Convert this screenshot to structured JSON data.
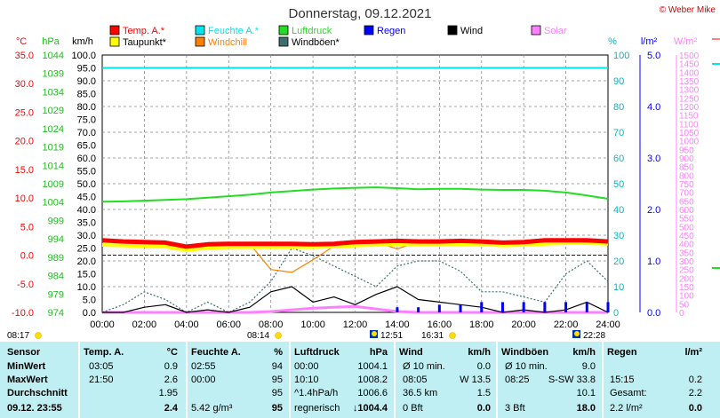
{
  "title": "Donnerstag, 09.12.2021",
  "brand": "© Weber Mike",
  "legend": [
    {
      "label": "Temp. A.*",
      "color": "#ff0000"
    },
    {
      "label": "Feuchte A.*",
      "color": "#00e5ee"
    },
    {
      "label": "Luftdruck",
      "color": "#22dd22"
    },
    {
      "label": "Regen",
      "color": "#0000ff"
    },
    {
      "label": "Wind",
      "color": "#000000"
    },
    {
      "label": "Solar",
      "color": "#ff80ff"
    },
    {
      "label": "Taupunkt*",
      "color": "#ffff00"
    },
    {
      "label": "Windchill",
      "color": "#ff8000"
    },
    {
      "label": "Windböen*",
      "color": "#3e6f6f"
    }
  ],
  "axes": {
    "temp_unit": "°C",
    "press_unit": "hPa",
    "wind_unit": "km/h",
    "hum_unit": "%",
    "rain_unit": "l/m²",
    "solar_unit": "W/m²",
    "temp_ticks": [
      "35.0",
      "30.0",
      "25.0",
      "20.0",
      "15.0",
      "10.0",
      "5.0",
      "0.0",
      "-5.0",
      "-10.0"
    ],
    "press_ticks": [
      "1044",
      "1039",
      "1034",
      "1029",
      "1024",
      "1019",
      "1014",
      "1009",
      "1004",
      "999",
      "994",
      "989",
      "984",
      "979",
      "974"
    ],
    "wind_ticks": [
      "100.0",
      "95.0",
      "90.0",
      "85.0",
      "80.0",
      "75.0",
      "70.0",
      "65.0",
      "60.0",
      "55.0",
      "50.0",
      "45.0",
      "40.0",
      "35.0",
      "30.0",
      "25.0",
      "20.0",
      "15.0",
      "10.0",
      "5.0",
      "0.0"
    ],
    "hum_ticks": [
      "100",
      "90",
      "80",
      "70",
      "60",
      "50",
      "40",
      "30",
      "20",
      "10",
      "0"
    ],
    "rain_ticks": [
      "5.0",
      "4.0",
      "3.0",
      "2.0",
      "1.0",
      "0.0"
    ],
    "solar_ticks": [
      "1500",
      "1450",
      "1400",
      "1350",
      "1300",
      "1250",
      "1200",
      "1150",
      "1100",
      "1050",
      "1000",
      "950",
      "900",
      "850",
      "800",
      "750",
      "700",
      "650",
      "600",
      "550",
      "500",
      "450",
      "400",
      "350",
      "300",
      "250",
      "200",
      "150",
      "100",
      "50",
      "0"
    ],
    "time_ticks": [
      "00:00",
      "02:00",
      "04:00",
      "06:00",
      "08:00",
      "10:00",
      "12:00",
      "14:00",
      "16:00",
      "18:00",
      "20:00",
      "22:00",
      "24:00"
    ]
  },
  "sun_markers": [
    {
      "label": "08:17",
      "type": "sunrise"
    },
    {
      "label": "08:14",
      "type": "sunrise"
    },
    {
      "label": "12:51",
      "type": "moon"
    },
    {
      "label": "16:31",
      "type": "sunset"
    },
    {
      "label": "22:28",
      "type": "moon"
    }
  ],
  "chart_data": {
    "type": "line",
    "title": "Donnerstag, 09.12.2021",
    "xlim": [
      "00:00",
      "24:00"
    ],
    "x_hours": [
      0,
      1,
      2,
      3,
      4,
      5,
      6,
      7,
      8,
      9,
      10,
      11,
      12,
      13,
      14,
      15,
      16,
      17,
      18,
      19,
      20,
      21,
      22,
      23,
      24
    ],
    "series": [
      {
        "name": "Temp. A.*",
        "unit": "°C",
        "color": "#ff0000",
        "values": [
          2.6,
          2.4,
          2.3,
          2.2,
          1.5,
          1.9,
          2.0,
          2.0,
          2.0,
          2.0,
          1.9,
          2.0,
          2.3,
          2.4,
          2.5,
          2.4,
          2.4,
          2.5,
          2.4,
          2.2,
          2.3,
          2.6,
          2.6,
          2.6,
          2.4
        ]
      },
      {
        "name": "Taupunkt*",
        "unit": "°C",
        "color": "#ffff00",
        "values": [
          1.8,
          1.7,
          1.6,
          1.5,
          0.9,
          1.3,
          1.4,
          1.4,
          1.4,
          1.4,
          1.4,
          1.5,
          1.7,
          1.8,
          1.9,
          1.9,
          1.9,
          1.9,
          1.9,
          1.7,
          1.8,
          2.0,
          2.1,
          2.1,
          2.0
        ]
      },
      {
        "name": "Feuchte A.*",
        "unit": "%",
        "color": "#00e5ee",
        "values": [
          95,
          95,
          95,
          95,
          95,
          95,
          95,
          95,
          95,
          95,
          95,
          95,
          95,
          95,
          95,
          95,
          95,
          95,
          95,
          95,
          95,
          95,
          95,
          95,
          95
        ]
      },
      {
        "name": "Luftdruck",
        "unit": "hPa",
        "color": "#22dd22",
        "values": [
          1004.1,
          1004.2,
          1004.4,
          1004.6,
          1004.8,
          1005.2,
          1005.6,
          1006.0,
          1006.6,
          1007.0,
          1007.4,
          1007.7,
          1007.9,
          1008.0,
          1007.8,
          1007.5,
          1007.6,
          1007.6,
          1007.4,
          1007.3,
          1007.3,
          1007.1,
          1006.6,
          1005.8,
          1004.9
        ]
      },
      {
        "name": "Windchill",
        "unit": "°C",
        "color": "#ff8000",
        "values": [
          2.6,
          2.4,
          2.3,
          2.2,
          1.5,
          1.9,
          2.0,
          2.0,
          -2.5,
          -3.0,
          -0.8,
          1.6,
          2.3,
          2.3,
          1.1,
          2.4,
          2.4,
          2.3,
          2.4,
          2.2,
          2.3,
          2.6,
          2.4,
          2.6,
          2.4
        ]
      },
      {
        "name": "Wind",
        "unit": "km/h",
        "color": "#000000",
        "values": [
          0,
          0,
          2,
          3,
          0,
          1,
          0,
          2,
          8,
          10,
          4,
          6,
          3,
          7,
          10,
          5,
          4,
          3,
          2,
          0,
          1,
          0,
          1,
          4,
          0
        ]
      },
      {
        "name": "Windböen*",
        "unit": "km/h",
        "color": "#3e6f6f",
        "values": [
          0,
          3,
          8,
          5,
          0,
          4,
          0,
          4,
          12,
          25,
          22,
          18,
          14,
          10,
          18,
          20,
          20,
          16,
          8,
          8,
          6,
          4,
          15,
          20,
          12
        ]
      },
      {
        "name": "Regen",
        "unit": "l/m²",
        "color": "#0000ff",
        "values": [
          0,
          0,
          0,
          0,
          0,
          0,
          0,
          0,
          0,
          0,
          0,
          0,
          0,
          0,
          0.1,
          0.1,
          0.15,
          0.15,
          0.2,
          0.2,
          0.2,
          0.2,
          0.2,
          0.2,
          0.2
        ]
      },
      {
        "name": "Solar",
        "unit": "W/m²",
        "color": "#ff80ff",
        "values": [
          0,
          0,
          0,
          0,
          0,
          0,
          0,
          0,
          5,
          15,
          25,
          30,
          35,
          20,
          5,
          0,
          0,
          0,
          0,
          0,
          0,
          0,
          0,
          0,
          0
        ]
      }
    ],
    "grid": true,
    "legend_position": "top"
  },
  "stats": {
    "headers": {
      "sensor": "Sensor",
      "temp": "Temp. A.",
      "temp_unit": "°C",
      "hum": "Feuchte A.",
      "hum_unit": "%",
      "press": "Luftdruck",
      "press_unit": "hPa",
      "wind": "Wind",
      "wind_unit": "km/h",
      "gust": "Windböen",
      "gust_unit": "km/h",
      "rain": "Regen",
      "rain_unit": "l/m²"
    },
    "rows": [
      {
        "label": "MinWert",
        "temp_t": "03:05",
        "temp_v": "0.9",
        "hum_t": "02:55",
        "hum_v": "94",
        "press_t": "00:00",
        "press_v": "1004.1",
        "wind_t": "Ø 10 min.",
        "wind_v": "0.0",
        "gust_t": "Ø 10 min.",
        "gust_v": "9.0",
        "rain_t": "",
        "rain_v": ""
      },
      {
        "label": "MaxWert",
        "temp_t": "21:50",
        "temp_v": "2.6",
        "hum_t": "00:00",
        "hum_v": "95",
        "press_t": "10:10",
        "press_v": "1008.2",
        "wind_t": "08:05",
        "wind_v": "W 13.5",
        "gust_t": "08:25",
        "gust_v": "S-SW 33.8",
        "rain_t": "15:15",
        "rain_v": "0.2"
      },
      {
        "label": "Durchschnitt",
        "temp_t": "",
        "temp_v": "1.95",
        "hum_t": "",
        "hum_v": "95",
        "press_t": "^1.4hPa/h",
        "press_v": "1006.6",
        "wind_t": "36.5 km",
        "wind_v": "1.5",
        "gust_t": "",
        "gust_v": "10.1",
        "rain_t": "Gesamt:",
        "rain_v": "2.2"
      },
      {
        "label": "09.12. 23:55",
        "temp_t": "",
        "temp_v": "2.4",
        "hum_t": "5.42 g/m³",
        "hum_v": "95",
        "press_t": "regnerisch",
        "press_v": "↓1004.4",
        "wind_t": "0 Bft",
        "wind_v": "0.0",
        "gust_t": "3 Bft",
        "gust_v": "18.0",
        "rain_t": "2.2 l/m²",
        "rain_v": "0.0"
      }
    ]
  }
}
